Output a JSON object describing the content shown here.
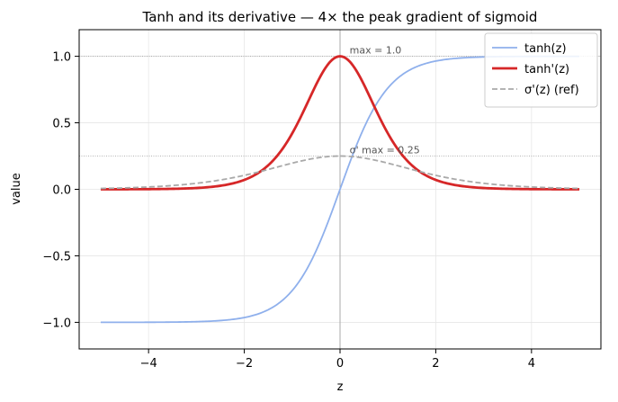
{
  "chart_data": {
    "type": "line",
    "title": "Tanh and its derivative — 4× the peak gradient of sigmoid",
    "xlabel": "z",
    "ylabel": "value",
    "xlim": [
      -5.45,
      5.45
    ],
    "ylim": [
      -1.2,
      1.2
    ],
    "xticks": [
      -4,
      -2,
      0,
      2,
      4
    ],
    "xtick_labels": [
      "−4",
      "−2",
      "0",
      "2",
      "4"
    ],
    "yticks": [
      -1.0,
      -0.5,
      0.0,
      0.5,
      1.0
    ],
    "ytick_labels": [
      "−1.0",
      "−0.5",
      "0.0",
      "0.5",
      "1.0"
    ],
    "grid": true,
    "legend_position": "top-right",
    "x_range": [
      -5,
      5
    ],
    "series": [
      {
        "name": "tanh(z)",
        "color": "#8fb0ec",
        "style": "solid",
        "x": [
          -5,
          -4,
          -3,
          -2,
          -1.5,
          -1,
          -0.5,
          0,
          0.5,
          1,
          1.5,
          2,
          3,
          4,
          5
        ],
        "y": [
          -0.9999,
          -0.9993,
          -0.9951,
          -0.964,
          -0.9051,
          -0.7616,
          -0.4621,
          0.0,
          0.4621,
          0.7616,
          0.9051,
          0.964,
          0.9951,
          0.9993,
          0.9999
        ]
      },
      {
        "name": "tanh'(z)",
        "color": "#d62728",
        "style": "solid",
        "x": [
          -5,
          -4,
          -3,
          -2,
          -1.5,
          -1,
          -0.5,
          0,
          0.5,
          1,
          1.5,
          2,
          3,
          4,
          5
        ],
        "y": [
          0.0002,
          0.0013,
          0.0099,
          0.0707,
          0.1807,
          0.42,
          0.7864,
          1.0,
          0.7864,
          0.42,
          0.1807,
          0.0707,
          0.0099,
          0.0013,
          0.0002
        ]
      },
      {
        "name": "σ'(z) (ref)",
        "color": "#a9a9a9",
        "style": "dashed",
        "x": [
          -5,
          -4,
          -3,
          -2,
          -1.5,
          -1,
          -0.5,
          0,
          0.5,
          1,
          1.5,
          2,
          3,
          4,
          5
        ],
        "y": [
          0.0066,
          0.0177,
          0.0452,
          0.105,
          0.1491,
          0.1966,
          0.235,
          0.25,
          0.235,
          0.1966,
          0.1491,
          0.105,
          0.0452,
          0.0177,
          0.0066
        ]
      }
    ],
    "reference_lines": [
      {
        "orientation": "horizontal",
        "value": 1.0
      },
      {
        "orientation": "horizontal",
        "value": 0.25
      },
      {
        "orientation": "vertical",
        "value": 0
      }
    ],
    "annotations": [
      {
        "text": "max = 1.0",
        "x": 0.2,
        "y": 1.0
      },
      {
        "text": "σ' max = 0.25",
        "x": 0.2,
        "y": 0.25
      }
    ]
  }
}
